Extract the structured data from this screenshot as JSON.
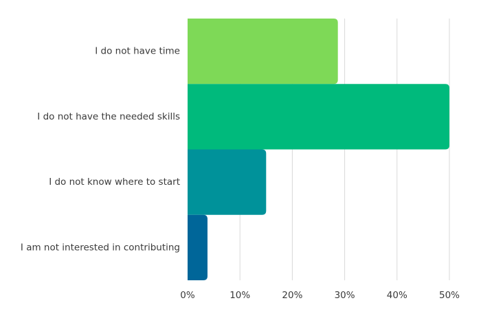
{
  "chart_data": {
    "type": "bar",
    "orientation": "horizontal",
    "title": "",
    "xlabel": "",
    "ylabel": "",
    "categories": [
      "I do not have time",
      "I do not have the needed skills",
      "I do not know where to start",
      "I am not interested in contributing"
    ],
    "values": [
      28.7,
      50.0,
      15.0,
      3.8
    ],
    "value_unit": "%",
    "xlim": [
      0,
      50
    ],
    "x_ticks": [
      0,
      10,
      20,
      30,
      40,
      50
    ],
    "x_tick_labels": [
      "0%",
      "10%",
      "20%",
      "30%",
      "40%",
      "50%"
    ],
    "grid": "vertical",
    "legend": "none",
    "colors": [
      "#7ed957",
      "#00ba7c",
      "#00929a",
      "#006699"
    ],
    "gridline_color": "#d9d9d9",
    "text_color": "#3a3a3a"
  }
}
